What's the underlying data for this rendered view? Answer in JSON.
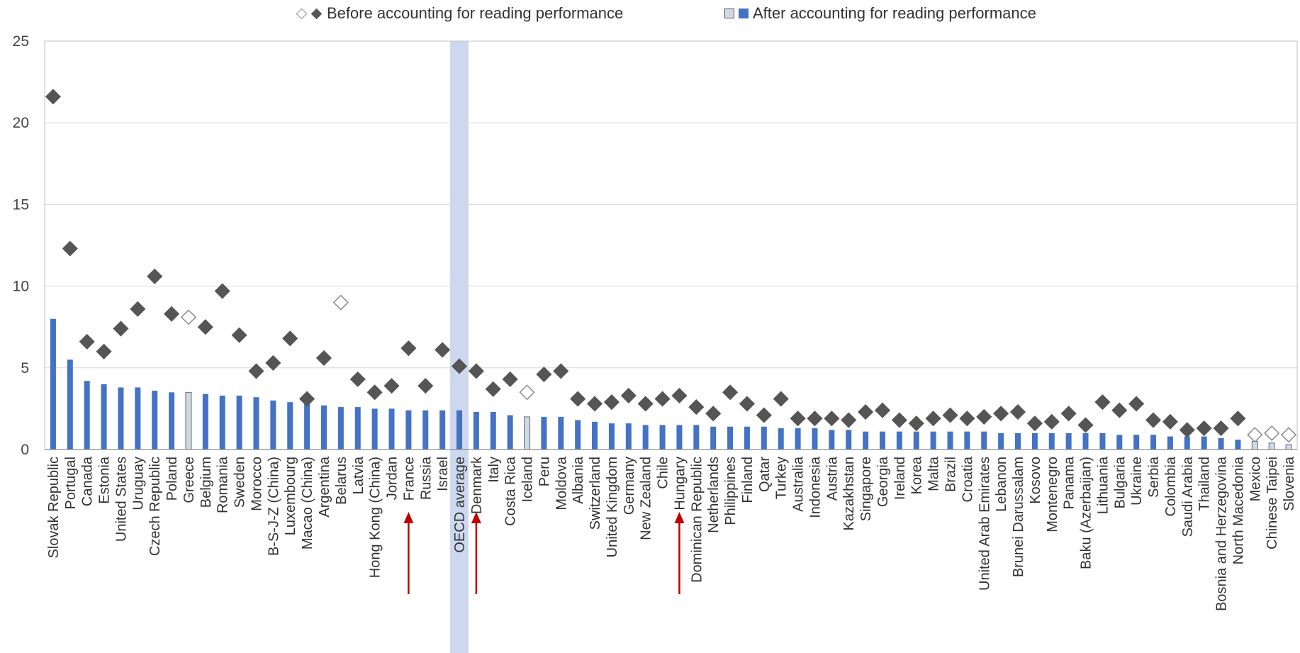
{
  "legend": {
    "before_label": "Before accounting for reading performance",
    "after_label": "After accounting for reading performance"
  },
  "colors": {
    "bar": "#4472c4",
    "bar_hollow": "#d0d9ea",
    "marker": "#555555",
    "highlight": "#cdd8ee",
    "arrow": "#c00000"
  },
  "chart_data": {
    "type": "bar",
    "ylim": [
      0,
      25
    ],
    "yticks": [
      0,
      5,
      10,
      15,
      20,
      25
    ],
    "grid": true,
    "legend_position": "top",
    "highlight_category": "OECD average",
    "arrow_categories": [
      "France",
      "Denmark",
      "Hungary"
    ],
    "categories": [
      "Slovak Republic",
      "Portugal",
      "Canada",
      "Estonia",
      "United States",
      "Uruguay",
      "Czech Republic",
      "Poland",
      "Greece",
      "Belgium",
      "Romania",
      "Sweden",
      "Morocco",
      "B-S-J-Z (China)",
      "Luxembourg",
      "Macao (China)",
      "Argentina",
      "Belarus",
      "Latvia",
      "Hong Kong (China)",
      "Jordan",
      "France",
      "Russia",
      "Israel",
      "OECD average",
      "Denmark",
      "Italy",
      "Costa Rica",
      "Iceland",
      "Peru",
      "Moldova",
      "Albania",
      "Switzerland",
      "United Kingdom",
      "Germany",
      "New Zealand",
      "Chile",
      "Hungary",
      "Dominican Republic",
      "Netherlands",
      "Philippines",
      "Finland",
      "Qatar",
      "Turkey",
      "Australia",
      "Indonesia",
      "Austria",
      "Kazakhstan",
      "Singapore",
      "Georgia",
      "Ireland",
      "Korea",
      "Malta",
      "Brazil",
      "Croatia",
      "United Arab Emirates",
      "Lebanon",
      "Brunei Darussalam",
      "Kosovo",
      "Montenegro",
      "Panama",
      "Baku (Azerbaijan)",
      "Lithuania",
      "Bulgaria",
      "Ukraine",
      "Serbia",
      "Colombia",
      "Saudi Arabia",
      "Thailand",
      "Bosnia and Herzegovina",
      "North Macedonia",
      "Mexico",
      "Chinese Taipei",
      "Slovenia"
    ],
    "series": [
      {
        "name": "Before accounting for reading performance",
        "kind": "diamond",
        "values": [
          21.6,
          12.3,
          6.6,
          6.0,
          7.4,
          8.6,
          10.6,
          8.3,
          8.1,
          7.5,
          9.7,
          7.0,
          4.8,
          5.3,
          6.8,
          3.1,
          5.6,
          9.0,
          4.3,
          3.5,
          3.9,
          6.2,
          3.9,
          6.1,
          5.1,
          4.8,
          3.7,
          4.3,
          3.5,
          4.6,
          4.8,
          3.1,
          2.8,
          2.9,
          3.3,
          2.8,
          3.1,
          3.3,
          2.6,
          2.2,
          3.5,
          2.8,
          2.1,
          3.1,
          1.9,
          1.9,
          1.9,
          1.8,
          2.3,
          2.4,
          1.8,
          1.6,
          1.9,
          2.1,
          1.9,
          2.0,
          2.2,
          2.3,
          1.6,
          1.7,
          2.2,
          1.5,
          2.9,
          2.4,
          2.8,
          1.8,
          1.7,
          1.2,
          1.3,
          1.3,
          1.9,
          0.9,
          1.0,
          0.9
        ],
        "hollow": [
          false,
          false,
          false,
          false,
          false,
          false,
          false,
          false,
          true,
          false,
          false,
          false,
          false,
          false,
          false,
          false,
          false,
          true,
          false,
          false,
          false,
          false,
          false,
          false,
          false,
          false,
          false,
          false,
          true,
          false,
          false,
          false,
          false,
          false,
          false,
          false,
          false,
          false,
          false,
          false,
          false,
          false,
          false,
          false,
          false,
          false,
          false,
          false,
          false,
          false,
          false,
          false,
          false,
          false,
          false,
          false,
          false,
          false,
          false,
          false,
          false,
          false,
          false,
          false,
          false,
          false,
          false,
          false,
          false,
          false,
          false,
          true,
          true,
          true
        ]
      },
      {
        "name": "After accounting for reading performance",
        "kind": "bar",
        "values": [
          8.0,
          5.5,
          4.2,
          4.0,
          3.8,
          3.8,
          3.6,
          3.5,
          3.5,
          3.4,
          3.3,
          3.3,
          3.2,
          3.0,
          2.9,
          2.8,
          2.7,
          2.6,
          2.6,
          2.5,
          2.5,
          2.4,
          2.4,
          2.4,
          2.4,
          2.3,
          2.3,
          2.1,
          2.0,
          2.0,
          2.0,
          1.8,
          1.7,
          1.6,
          1.6,
          1.5,
          1.5,
          1.5,
          1.5,
          1.4,
          1.4,
          1.4,
          1.4,
          1.3,
          1.3,
          1.3,
          1.2,
          1.2,
          1.1,
          1.1,
          1.1,
          1.1,
          1.1,
          1.1,
          1.1,
          1.1,
          1.0,
          1.0,
          1.0,
          1.0,
          1.0,
          1.0,
          1.0,
          0.9,
          0.9,
          0.9,
          0.8,
          0.8,
          0.8,
          0.7,
          0.6,
          0.5,
          0.4,
          0.3
        ],
        "hollow": [
          false,
          false,
          false,
          false,
          false,
          false,
          false,
          false,
          true,
          false,
          false,
          false,
          false,
          false,
          false,
          false,
          false,
          false,
          false,
          false,
          false,
          false,
          false,
          false,
          false,
          false,
          false,
          false,
          true,
          false,
          false,
          false,
          false,
          false,
          false,
          false,
          false,
          false,
          false,
          false,
          false,
          false,
          false,
          false,
          false,
          false,
          false,
          false,
          false,
          false,
          false,
          false,
          false,
          false,
          false,
          false,
          false,
          false,
          false,
          false,
          false,
          false,
          false,
          false,
          false,
          false,
          false,
          false,
          false,
          false,
          false,
          true,
          true,
          true
        ]
      }
    ]
  }
}
